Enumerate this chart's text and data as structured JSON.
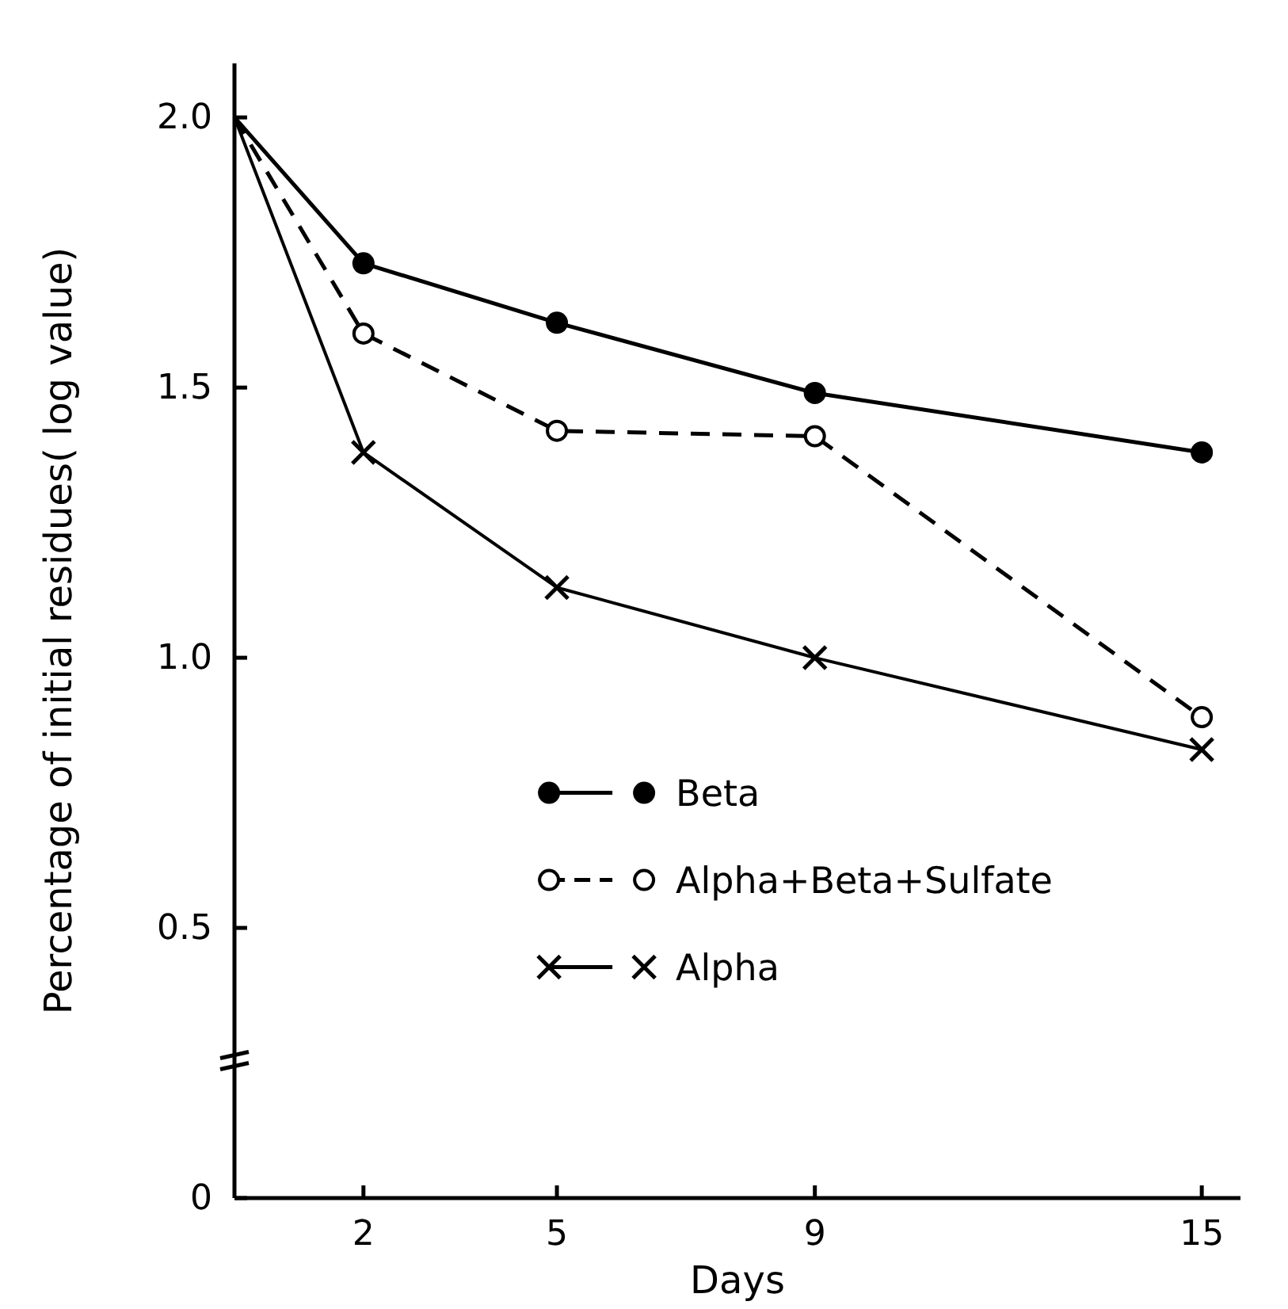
{
  "chart_data": {
    "type": "line",
    "xlabel": "Days",
    "ylabel": "Percentage of initial residues( log value)",
    "xlim": [
      0,
      15.6
    ],
    "xticks": [
      2,
      5,
      9,
      15
    ],
    "ylim": [
      0,
      2.1
    ],
    "yticks": [
      {
        "value": 0,
        "label": "0"
      },
      {
        "value": 0.5,
        "label": "0.5"
      },
      {
        "value": 1,
        "label": "1.0"
      },
      {
        "value": 1.5,
        "label": "1.5"
      },
      {
        "value": 2,
        "label": "2.0"
      }
    ],
    "x": [
      0,
      2,
      5,
      9,
      15
    ],
    "grid": false,
    "legend": "bottom right",
    "series": [
      {
        "name": "Beta",
        "color": "#000000",
        "marker": "circle",
        "line_style": "solid",
        "values": [
          2.0,
          1.73,
          1.62,
          1.49,
          1.38
        ]
      },
      {
        "name": "Alpha+Beta+Sulfate",
        "color": "#000000",
        "marker": "open-circle",
        "line_style": "dashed",
        "values": [
          2.0,
          1.6,
          1.42,
          1.41,
          0.89
        ]
      },
      {
        "name": "Alpha",
        "color": "#000000",
        "marker": "cross",
        "line_style": "solid",
        "values": [
          2.0,
          1.38,
          1.13,
          1.0,
          0.83
        ]
      }
    ]
  }
}
